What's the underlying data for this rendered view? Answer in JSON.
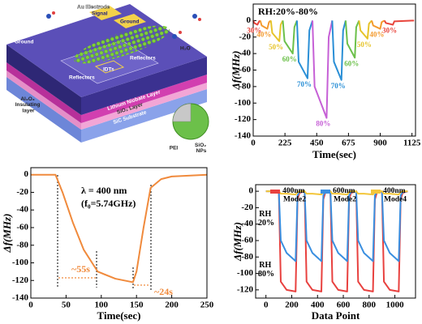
{
  "diagram": {
    "au_electrode": "Au Electrode",
    "signal": "Signal",
    "ground_top": "Ground",
    "ground_left": "Ground",
    "h2o": "H₂O",
    "idts": "IDTs",
    "reflector_left": "Reflectors",
    "reflector_right": "Reflectors",
    "insulating": "Al₂O₃ Insulating layer",
    "linbo3": "Lithium Niobate Layer",
    "sio2_layer": "SiO₂ Layer",
    "sic": "SiC Substrate",
    "pei": "PEI",
    "nps": "SiO₂ NPs"
  },
  "chart_data": [
    {
      "type": "line",
      "annotation": "RH:20%-80%",
      "x_label": "Time(sec)",
      "y_label": "Δf(MHz)",
      "xlim": [
        0,
        1150
      ],
      "ylim": [
        -140,
        20
      ],
      "xticks": [
        0,
        225,
        450,
        675,
        900,
        1125
      ],
      "yticks": [
        0,
        -20,
        -40,
        -60,
        -80,
        -100,
        -120,
        -140
      ],
      "series": [
        {
          "name": "30%",
          "color": "#e8453c",
          "x": [
            0,
            8,
            30,
            42,
            50
          ],
          "values": [
            0,
            -3,
            -5,
            -1,
            0
          ]
        },
        {
          "name": "40%",
          "color": "#f39a2e",
          "x": [
            50,
            60,
            100,
            112,
            125
          ],
          "values": [
            0,
            -6,
            -10,
            -2,
            0
          ]
        },
        {
          "name": "50%",
          "color": "#e6c42a",
          "x": [
            125,
            135,
            185,
            195,
            210
          ],
          "values": [
            0,
            -15,
            -25,
            -5,
            0
          ]
        },
        {
          "name": "60%",
          "color": "#6cc04a",
          "x": [
            210,
            222,
            280,
            292,
            310
          ],
          "values": [
            0,
            -25,
            -40,
            -8,
            0
          ]
        },
        {
          "name": "70%",
          "color": "#2a8fd6",
          "x": [
            310,
            322,
            385,
            398,
            420
          ],
          "values": [
            0,
            -50,
            -70,
            -12,
            0
          ]
        },
        {
          "name": "80%",
          "color": "#c660d6",
          "x": [
            420,
            435,
            520,
            535,
            560
          ],
          "values": [
            0,
            -80,
            -118,
            -20,
            0
          ]
        },
        {
          "name": "70%",
          "color": "#2a8fd6",
          "x": [
            560,
            572,
            625,
            637,
            655
          ],
          "values": [
            0,
            -50,
            -72,
            -12,
            0
          ]
        },
        {
          "name": "60%",
          "color": "#6cc04a",
          "x": [
            655,
            667,
            720,
            730,
            750
          ],
          "values": [
            0,
            -28,
            -45,
            -8,
            0
          ]
        },
        {
          "name": "50%",
          "color": "#e6c42a",
          "x": [
            750,
            760,
            810,
            820,
            840
          ],
          "values": [
            0,
            -12,
            -22,
            -4,
            0
          ]
        },
        {
          "name": "40%",
          "color": "#f39a2e",
          "x": [
            840,
            850,
            900,
            910,
            930
          ],
          "values": [
            0,
            -6,
            -10,
            -2,
            0
          ]
        },
        {
          "name": "30%",
          "color": "#e8453c",
          "x": [
            930,
            940,
            990,
            1000,
            1140
          ],
          "values": [
            0,
            -3,
            -5,
            -1,
            0
          ]
        }
      ]
    },
    {
      "type": "line",
      "annotations": [
        "λ = 400 nm",
        "(f₀=5.74GHz)",
        "~55s",
        "~24s"
      ],
      "x_label": "Time(sec)",
      "y_label": "Δf(MHz)",
      "xlim": [
        0,
        250
      ],
      "ylim": [
        -140,
        8
      ],
      "xticks": [
        0,
        50,
        100,
        150,
        200,
        250
      ],
      "yticks": [
        0,
        -20,
        -40,
        -60,
        -80,
        -100,
        -120,
        -140
      ],
      "color": "#f08a3c",
      "x": [
        0,
        35,
        45,
        60,
        75,
        95,
        120,
        145,
        150,
        160,
        170,
        185,
        200,
        250
      ],
      "values": [
        0,
        0,
        -20,
        -55,
        -85,
        -110,
        -118,
        -122,
        -110,
        -60,
        -15,
        -5,
        -2,
        0
      ]
    },
    {
      "type": "line",
      "annotations": [
        "RH 20%",
        "RH 80%"
      ],
      "x_label": "Data Point",
      "y_label": "Δf(MHz)",
      "xlim": [
        -80,
        1160
      ],
      "ylim": [
        -130,
        8
      ],
      "xticks": [
        0,
        200,
        400,
        600,
        800,
        1000
      ],
      "yticks": [
        0,
        -20,
        -40,
        -60,
        -80,
        -100,
        -120
      ],
      "x": [
        0,
        100,
        115,
        160,
        230,
        245,
        260,
        300,
        315,
        360,
        430,
        445,
        460,
        500,
        515,
        560,
        630,
        645,
        660,
        700,
        715,
        760,
        830,
        845,
        860,
        900,
        915,
        960,
        1030,
        1045,
        1060,
        1100
      ],
      "series": [
        {
          "name": "400nm Mode2",
          "color": "#e8413f",
          "values": [
            0,
            0,
            -110,
            -120,
            -122,
            -10,
            -2,
            0,
            -110,
            -120,
            -122,
            -10,
            -2,
            0,
            -110,
            -120,
            -122,
            -10,
            -2,
            0,
            -110,
            -120,
            -122,
            -10,
            -2,
            0,
            -110,
            -120,
            -122,
            -10,
            -2,
            0
          ]
        },
        {
          "name": "600nm Mode2",
          "color": "#3a8fe0",
          "values": [
            0,
            0,
            -60,
            -75,
            -85,
            -5,
            -1,
            0,
            -60,
            -75,
            -85,
            -5,
            -1,
            0,
            -60,
            -75,
            -85,
            -5,
            -1,
            0,
            -60,
            -75,
            -85,
            -5,
            -1,
            0,
            -60,
            -75,
            -85,
            -5,
            -1,
            0
          ]
        },
        {
          "name": "400nm Mode4",
          "color": "#f3c63b",
          "values": [
            0,
            0,
            -3,
            -3,
            -4,
            -1,
            0,
            0,
            -3,
            -3,
            -4,
            -1,
            0,
            0,
            -3,
            -3,
            -4,
            -1,
            0,
            0,
            -3,
            -3,
            -4,
            -1,
            0,
            0,
            -3,
            -3,
            -4,
            -1,
            0,
            0
          ]
        }
      ]
    }
  ]
}
